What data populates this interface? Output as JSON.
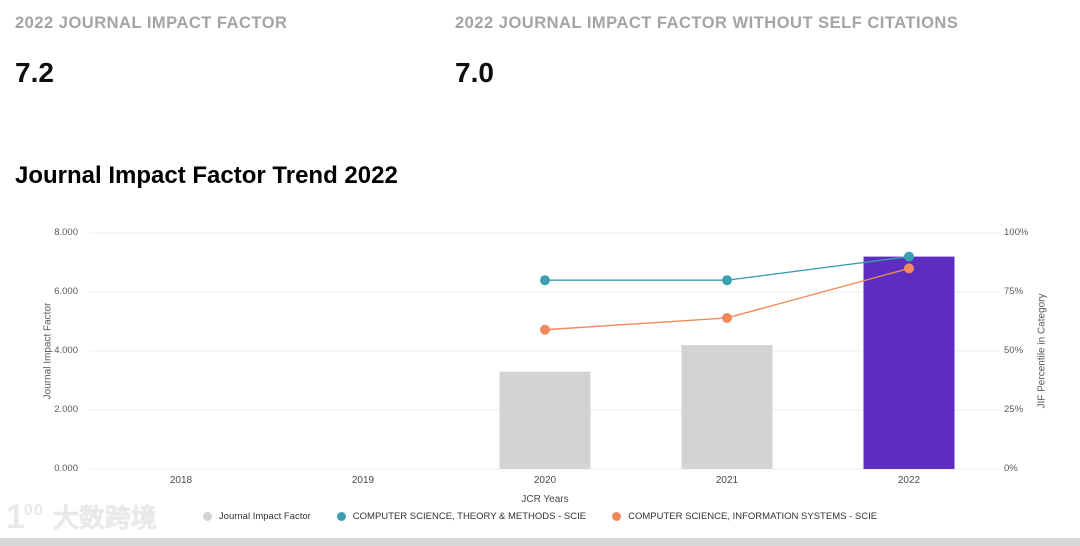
{
  "metrics": {
    "jif": {
      "label": "2022 JOURNAL IMPACT FACTOR",
      "value": "7.2"
    },
    "jif_without_self_citations": {
      "label": "2022 JOURNAL IMPACT FACTOR WITHOUT SELF CITATIONS",
      "value": "7.0"
    }
  },
  "chart_data": {
    "type": "bar+line",
    "title": "Journal Impact Factor Trend 2022",
    "xlabel": "JCR Years",
    "ylabel_left": "Journal Impact Factor",
    "ylabel_right": "JIF Percentile in Category",
    "categories": [
      "2018",
      "2019",
      "2020",
      "2021",
      "2022"
    ],
    "y_left_ticks": [
      "8.000",
      "6.000",
      "4.000",
      "2.000",
      "0.000"
    ],
    "y_right_ticks": [
      "100%",
      "75%",
      "50%",
      "25%",
      "0%"
    ],
    "ylim_left": [
      0,
      8
    ],
    "ylim_right": [
      0,
      100
    ],
    "grid": true,
    "legend_position": "bottom",
    "bar_series": {
      "name": "Journal Impact Factor",
      "axis": "left",
      "values": [
        null,
        null,
        3.3,
        4.2,
        7.2
      ],
      "default_color": "#d3d3d3",
      "highlight_color": "#5c2dbe",
      "highlight_index": 4
    },
    "line_series": [
      {
        "name": "COMPUTER SCIENCE, THEORY & METHODS - SCIE",
        "axis": "right",
        "values": [
          null,
          null,
          80,
          80,
          90
        ],
        "color": "#3ba0b4"
      },
      {
        "name": "COMPUTER SCIENCE, INFORMATION SYSTEMS - SCIE",
        "axis": "right",
        "values": [
          null,
          null,
          59,
          64,
          85
        ],
        "color": "#f08a5a"
      }
    ]
  },
  "watermark": {
    "mark_main": "1",
    "mark_sup": "00",
    "text": "大数跨境"
  }
}
